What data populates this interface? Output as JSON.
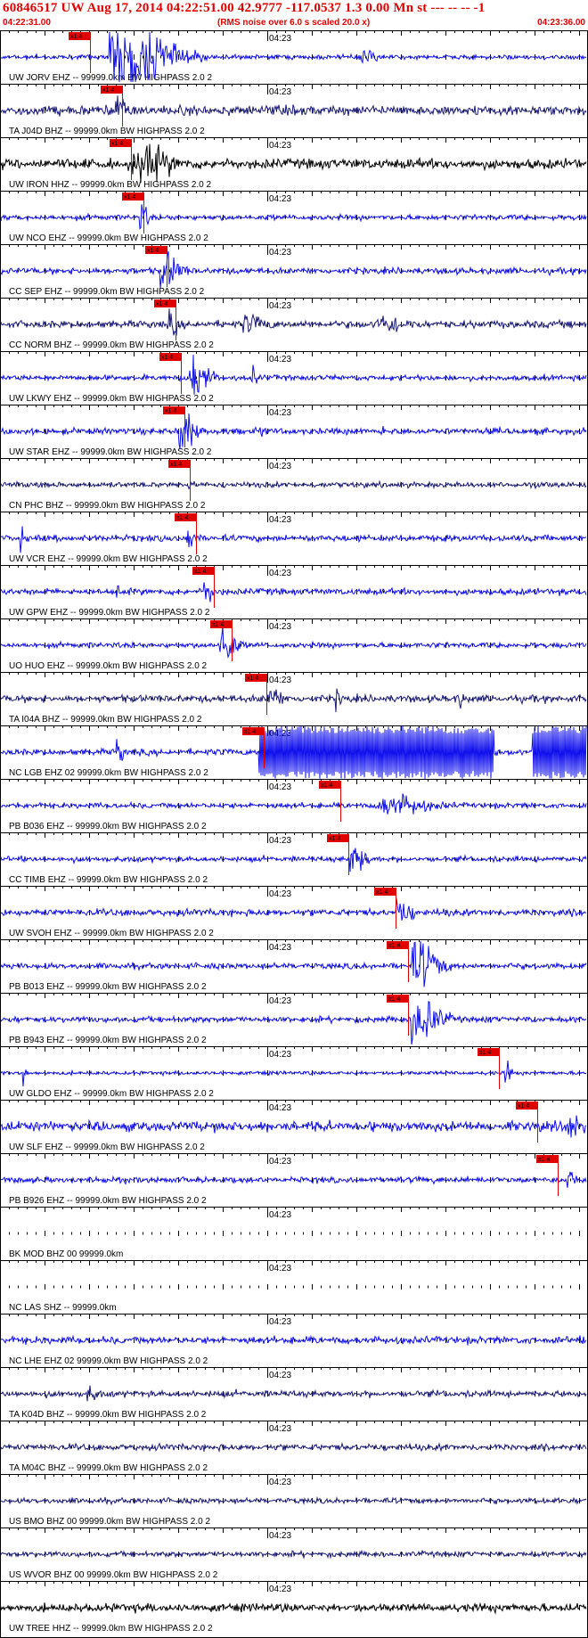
{
  "header": {
    "title": "60846517 UW Aug 17, 2014 04:22:51.00   42.9777 -117.0537  1.3 0.00 Mn st --- -- --   -1",
    "start_time": "04:22:31.00",
    "note": "(RMS noise over 6.0 s scaled 20.0 x)",
    "end_time": "04:23:36.00"
  },
  "tick_time_label": "04:23",
  "pick_label": "x1 4",
  "colors": {
    "header_text": "#e00000",
    "frame": "#000000",
    "pick": "#e00000",
    "wave_blue": "#1010ee",
    "wave_dark_blue": "#1a1a7a",
    "wave_black": "#000000"
  },
  "traces": [
    {
      "label": "UW JORV EHZ -- 99999.0km BW  HIGHPASS  2.0  2",
      "color": "wave_blue",
      "pick": 0.135,
      "noise": 0.1,
      "bursts": [
        [
          0.21,
          0.08,
          1.6
        ],
        [
          0.62,
          0.02,
          0.35
        ]
      ]
    },
    {
      "label": "TA J04D BHZ -- 99999.0km BW  HIGHPASS  2.0  2",
      "color": "wave_dark_blue",
      "pick": 0.19,
      "noise": 0.22,
      "bursts": [
        [
          0.2,
          0.012,
          0.9
        ]
      ]
    },
    {
      "label": "UW IRON HHZ -- 99999.0km BW  HIGHPASS  2.0  2",
      "color": "wave_black",
      "pick": 0.205,
      "noise": 0.22,
      "bursts": [
        [
          0.24,
          0.05,
          0.7
        ]
      ]
    },
    {
      "label": "UW NCO EHZ -- 99999.0km BW  HIGHPASS  2.0  2",
      "color": "wave_blue",
      "pick": 0.225,
      "noise": 0.12,
      "bursts": [
        [
          0.24,
          0.012,
          0.6
        ]
      ]
    },
    {
      "label": "CC SEP EHZ -- 99999.0km BW  HIGHPASS  2.0  2",
      "color": "wave_blue",
      "pick": 0.265,
      "noise": 0.14,
      "bursts": [
        [
          0.28,
          0.025,
          0.8
        ]
      ]
    },
    {
      "label": "CC NORM BHZ -- 99999.0km BW  HIGHPASS  2.0  2",
      "color": "wave_dark_blue",
      "pick": 0.28,
      "noise": 0.16,
      "bursts": [
        [
          0.29,
          0.012,
          0.5
        ],
        [
          0.42,
          0.03,
          0.35
        ],
        [
          0.65,
          0.04,
          0.35
        ]
      ]
    },
    {
      "label": "UW LKWY EHZ -- 99999.0km BW  HIGHPASS  2.0  2",
      "color": "wave_blue",
      "pick": 0.29,
      "noise": 0.12,
      "bursts": [
        [
          0.33,
          0.025,
          1.0
        ],
        [
          0.43,
          0.008,
          0.4
        ]
      ]
    },
    {
      "label": "UW STAR EHZ -- 99999.0km BW  HIGHPASS  2.0  2",
      "color": "wave_blue",
      "pick": 0.295,
      "noise": 0.14,
      "bursts": [
        [
          0.31,
          0.02,
          1.0
        ],
        [
          0.44,
          0.006,
          0.35
        ],
        [
          0.65,
          0.005,
          0.3
        ]
      ]
    },
    {
      "label": "CN PHC BHZ -- 99999.0km BW  HIGHPASS  2.0  2",
      "color": "wave_dark_blue",
      "pick": 0.305,
      "noise": 0.12,
      "bursts": [
        [
          0.32,
          0.006,
          0.3
        ]
      ]
    },
    {
      "label": "UW VCR EHZ -- 99999.0km BW  HIGHPASS  2.0  2",
      "color": "wave_blue",
      "pick": 0.315,
      "noise": 0.14,
      "bursts": [
        [
          0.035,
          0.004,
          0.6
        ],
        [
          0.32,
          0.008,
          0.7
        ]
      ]
    },
    {
      "label": "UW GPW EHZ -- 99999.0km BW  HIGHPASS  2.0  2",
      "color": "wave_blue",
      "pick": 0.345,
      "noise": 0.14,
      "bursts": [
        [
          0.35,
          0.012,
          0.6
        ],
        [
          0.2,
          0.008,
          0.3
        ]
      ]
    },
    {
      "label": "UO HUO EHZ -- 99999.0km BW  HIGHPASS  2.0  2",
      "color": "wave_blue",
      "pick": 0.375,
      "noise": 0.12,
      "bursts": [
        [
          0.38,
          0.02,
          1.0
        ]
      ]
    },
    {
      "label": "TA I04A BHZ -- 99999.0km BW  HIGHPASS  2.0  2",
      "color": "wave_dark_blue",
      "pick": 0.435,
      "noise": 0.16,
      "bursts": [
        [
          0.46,
          0.02,
          0.45
        ],
        [
          0.57,
          0.01,
          0.35
        ],
        [
          0.78,
          0.01,
          0.3
        ]
      ]
    },
    {
      "label": "NC LGB EHZ 02 99999.0km BW  HIGHPASS  2.0  2",
      "color": "wave_blue",
      "pick": 0.43,
      "noise": 0.14,
      "bursts": [
        [
          0.2,
          0.008,
          0.7
        ]
      ],
      "clipped": [
        [
          0.44,
          0.84
        ],
        [
          0.905,
          1.0
        ]
      ]
    },
    {
      "label": "PB B036 EHZ -- 99999.0km BW  HIGHPASS  2.0  2",
      "color": "wave_blue",
      "pick": 0.56,
      "noise": 0.12,
      "bursts": [
        [
          0.66,
          0.06,
          0.45
        ]
      ]
    },
    {
      "label": "CC TIMB EHZ -- 99999.0km BW  HIGHPASS  2.0  2",
      "color": "wave_blue",
      "pick": 0.575,
      "noise": 0.12,
      "bursts": [
        [
          0.6,
          0.025,
          0.6
        ]
      ]
    },
    {
      "label": "UW SVOH EHZ -- 99999.0km BW  HIGHPASS  2.0  2",
      "color": "wave_blue",
      "pick": 0.655,
      "noise": 0.15,
      "bursts": [
        [
          0.68,
          0.02,
          0.5
        ]
      ]
    },
    {
      "label": "PB B013 EHZ -- 99999.0km BW  HIGHPASS  2.0  2",
      "color": "wave_blue",
      "pick": 0.675,
      "noise": 0.13,
      "bursts": [
        [
          0.71,
          0.035,
          1.0
        ]
      ]
    },
    {
      "label": "PB B943 EHZ -- 99999.0km BW  HIGHPASS  2.0  2",
      "color": "wave_blue",
      "pick": 0.675,
      "noise": 0.13,
      "bursts": [
        [
          0.71,
          0.035,
          1.2
        ]
      ]
    },
    {
      "label": "UW GLDO EHZ -- 99999.0km BW  HIGHPASS  2.0  2",
      "color": "wave_blue",
      "pick": 0.83,
      "noise": 0.08,
      "bursts": [
        [
          0.04,
          0.004,
          0.5
        ],
        [
          0.86,
          0.008,
          0.6
        ]
      ]
    },
    {
      "label": "UW SLF EHZ -- 99999.0km BW  HIGHPASS  2.0  2",
      "color": "wave_blue",
      "pick": 0.895,
      "noise": 0.22,
      "bursts": [
        [
          0.97,
          0.02,
          0.4
        ]
      ]
    },
    {
      "label": "PB B926 EHZ -- 99999.0km BW  HIGHPASS  2.0  2",
      "color": "wave_blue",
      "pick": 0.93,
      "noise": 0.13,
      "bursts": [
        [
          0.965,
          0.008,
          1.0
        ]
      ]
    },
    {
      "label": "BK MOD BHZ 00 99999.0km",
      "color": "wave_blue",
      "empty": true
    },
    {
      "label": "NC LAS SHZ -- 99999.0km",
      "color": "wave_blue",
      "empty": true
    },
    {
      "label": "NC LHE EHZ 02 99999.0km BW  HIGHPASS  2.0  2",
      "color": "wave_blue",
      "noise": 0.16
    },
    {
      "label": "TA K04D BHZ -- 99999.0km BW  HIGHPASS  2.0  2",
      "color": "wave_dark_blue",
      "noise": 0.14,
      "bursts": [
        [
          0.15,
          0.015,
          0.3
        ]
      ]
    },
    {
      "label": "TA M04C BHZ -- 99999.0km BW  HIGHPASS  2.0  2",
      "color": "wave_dark_blue",
      "noise": 0.14
    },
    {
      "label": "US BMO BHZ 00 99999.0km BW  HIGHPASS  2.0  2",
      "color": "wave_dark_blue",
      "noise": 0.12
    },
    {
      "label": "US WVOR BHZ 00 99999.0km BW  HIGHPASS  2.0  2",
      "color": "wave_dark_blue",
      "noise": 0.12
    },
    {
      "label": "UW TREE HHZ -- 99999.0km BW  HIGHPASS  2.0  2",
      "color": "wave_black",
      "noise": 0.18
    }
  ]
}
